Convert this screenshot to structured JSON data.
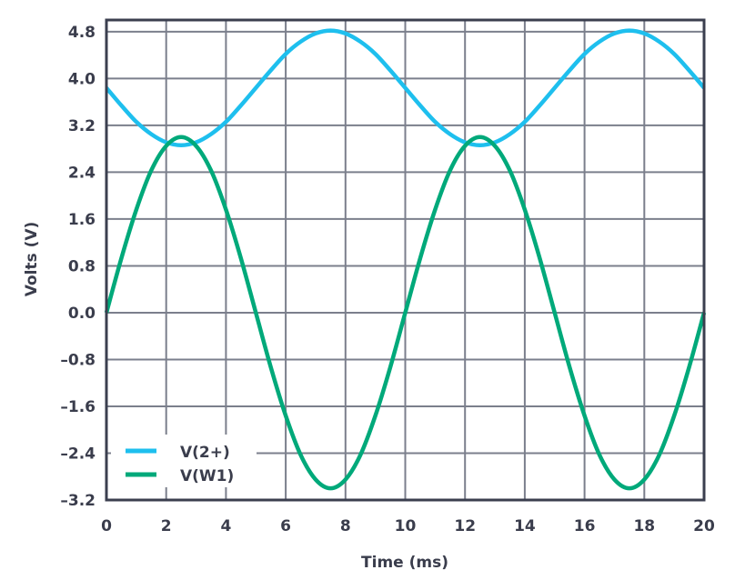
{
  "chart_data": {
    "type": "line",
    "title": "",
    "xlabel": "Time (ms)",
    "ylabel": "Volts (V)",
    "xlim": [
      0,
      20
    ],
    "ylim": [
      -3.2,
      5.0
    ],
    "grid": true,
    "legend_position": "bottom-left",
    "x_ticks": [
      0,
      2,
      4,
      6,
      8,
      10,
      12,
      14,
      16,
      18,
      20
    ],
    "x_tick_labels": [
      "0",
      "2",
      "4",
      "6",
      "8",
      "10",
      "12",
      "14",
      "16",
      "18",
      "20"
    ],
    "y_ticks": [
      4.8,
      4.0,
      3.2,
      2.4,
      1.6,
      0.8,
      0.0,
      -0.8,
      -1.6,
      -2.4,
      -3.2
    ],
    "y_tick_labels": [
      "4.8",
      "4.0",
      "3.2",
      "2.4",
      "1.6",
      "0.8",
      "0.0",
      "–0.8",
      "–1.6",
      "–2.4",
      "–3.2"
    ],
    "x": [
      0,
      0.5,
      1,
      1.5,
      2,
      2.5,
      3,
      3.5,
      4,
      4.5,
      5,
      5.5,
      6,
      6.5,
      7,
      7.5,
      8,
      8.5,
      9,
      9.5,
      10,
      10.5,
      11,
      11.5,
      12,
      12.5,
      13,
      13.5,
      14,
      14.5,
      15,
      15.5,
      16,
      16.5,
      17,
      17.5,
      18,
      18.5,
      19,
      19.5,
      20
    ],
    "series": [
      {
        "name": "V(2+)",
        "color": "#1ebfee",
        "values": [
          3.84,
          3.54,
          3.26,
          3.05,
          2.91,
          2.86,
          2.91,
          3.05,
          3.26,
          3.54,
          3.84,
          4.14,
          4.42,
          4.63,
          4.77,
          4.82,
          4.77,
          4.63,
          4.42,
          4.14,
          3.84,
          3.54,
          3.26,
          3.05,
          2.91,
          2.86,
          2.91,
          3.05,
          3.26,
          3.54,
          3.84,
          4.14,
          4.42,
          4.63,
          4.77,
          4.82,
          4.77,
          4.63,
          4.42,
          4.14,
          3.84
        ]
      },
      {
        "name": "V(W1)",
        "color": "#00a97a",
        "values": [
          0,
          0.93,
          1.76,
          2.43,
          2.85,
          3.0,
          2.85,
          2.43,
          1.76,
          0.93,
          0,
          -0.93,
          -1.76,
          -2.43,
          -2.85,
          -3.0,
          -2.85,
          -2.43,
          -1.76,
          -0.93,
          0,
          0.93,
          1.76,
          2.43,
          2.85,
          3.0,
          2.85,
          2.43,
          1.76,
          0.93,
          0,
          -0.93,
          -1.76,
          -2.43,
          -2.85,
          -3.0,
          -2.85,
          -2.43,
          -1.76,
          -0.93,
          0
        ]
      }
    ]
  }
}
